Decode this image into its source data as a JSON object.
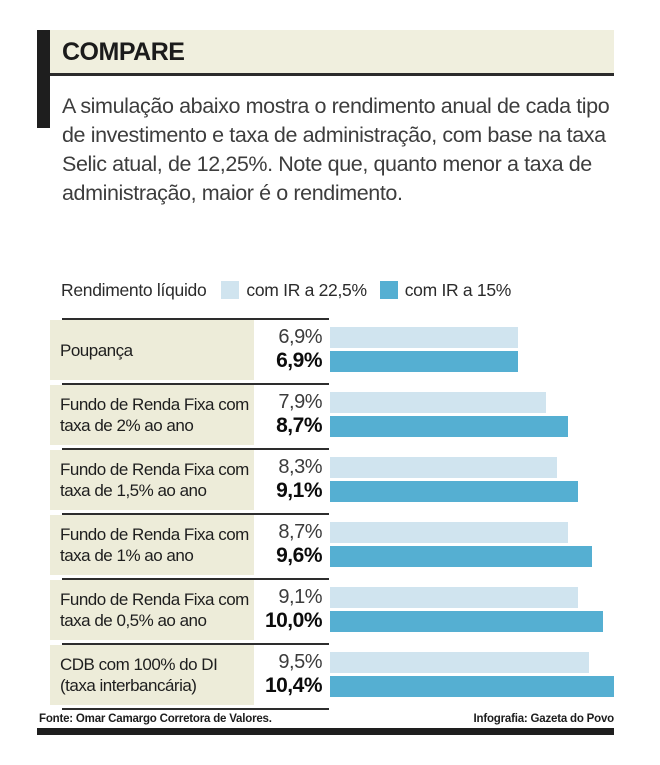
{
  "header": {
    "title": "COMPARE"
  },
  "intro": "A simulação abaixo mostra o rendimento anual de cada tipo de investimento e taxa de administração, com base na taxa Selic atual, de 12,25%. Note que, quanto menor a taxa de administração, maior é o rendimento.",
  "legend": {
    "label": "Rendimento líquido",
    "series1": "com IR a 22,5%",
    "series2": "com IR a 15%"
  },
  "colors": {
    "light_blue": "#d0e4ef",
    "dark_blue": "#55afd2",
    "cream": "#f0efde",
    "label_bg": "#edecd9",
    "dark": "#1e1e1e"
  },
  "chart_data": {
    "type": "bar",
    "orientation": "horizontal",
    "title": "COMPARE — Rendimento líquido",
    "unit": "% ao ano",
    "xlim": [
      0,
      10.4
    ],
    "grid": false,
    "legend_position": "top",
    "categories": [
      "Poupança",
      "Fundo de Renda Fixa com taxa de 2% ao ano",
      "Fundo de Renda Fixa com taxa de 1,5% ao ano",
      "Fundo de Renda Fixa com taxa de 1% ao ano",
      "Fundo de Renda Fixa com taxa de 0,5% ao ano",
      "CDB com 100% do DI (taxa interbancária)"
    ],
    "series": [
      {
        "name": "com IR a 22,5%",
        "color": "#d0e4ef",
        "values": [
          6.9,
          7.9,
          8.3,
          8.7,
          9.1,
          9.5
        ],
        "labels": [
          "6,9%",
          "7,9%",
          "8,3%",
          "8,7%",
          "9,1%",
          "9,5%"
        ]
      },
      {
        "name": "com IR a 15%",
        "color": "#55afd2",
        "values": [
          6.9,
          8.7,
          9.1,
          9.6,
          10.0,
          10.4
        ],
        "labels": [
          "6,9%",
          "8,7%",
          "9,1%",
          "9,6%",
          "10,0%",
          "10,4%"
        ]
      }
    ]
  },
  "footer": {
    "source": "Fonte: Omar Camargo Corretora de Valores.",
    "credit": "Infografia: Gazeta do Povo"
  }
}
